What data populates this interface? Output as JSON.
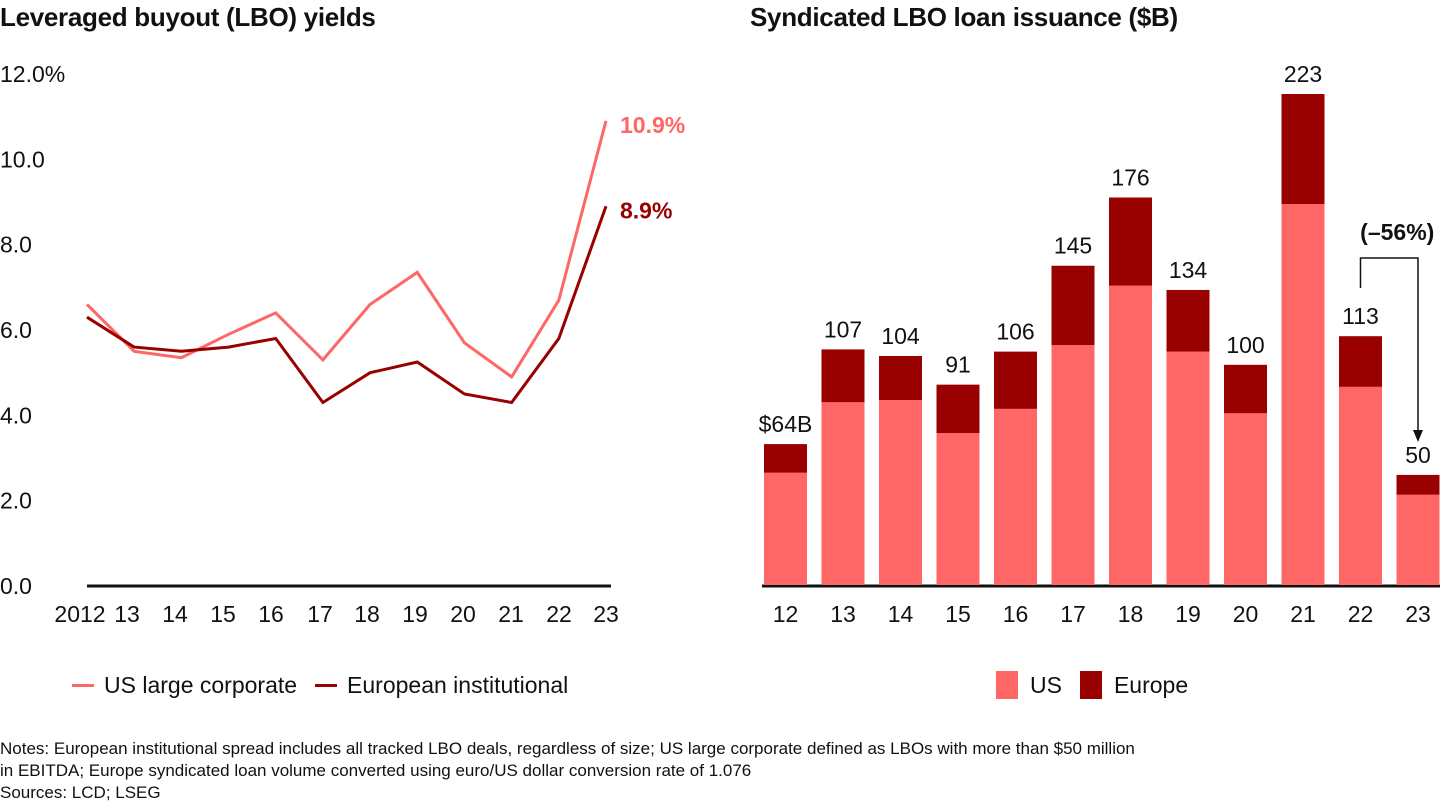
{
  "colors": {
    "us": "#ff6666",
    "europe": "#990000",
    "axis": "#111111"
  },
  "chart_data": [
    {
      "type": "line",
      "title": "Leveraged buyout (LBO) yields",
      "x": [
        "2012",
        "13",
        "14",
        "15",
        "16",
        "17",
        "18",
        "19",
        "20",
        "21",
        "22",
        "23"
      ],
      "yticks": [
        "0.0",
        "2.0",
        "4.0",
        "6.0",
        "8.0",
        "10.0",
        "12.0%"
      ],
      "ylim": [
        0,
        12
      ],
      "series": [
        {
          "name": "US large corporate",
          "color": "#ff6666",
          "values": [
            6.6,
            5.5,
            5.35,
            5.9,
            6.4,
            5.3,
            6.6,
            7.35,
            5.7,
            4.9,
            6.7,
            10.9
          ],
          "end_label": "10.9%"
        },
        {
          "name": "European institutional",
          "color": "#990000",
          "values": [
            6.3,
            5.6,
            5.5,
            5.6,
            5.8,
            4.3,
            5.0,
            5.25,
            4.5,
            4.3,
            5.8,
            8.9
          ],
          "end_label": "8.9%"
        }
      ],
      "legend": "bottom"
    },
    {
      "type": "bar",
      "stacked": true,
      "title": "Syndicated LBO loan issuance ($B)",
      "categories": [
        "12",
        "13",
        "14",
        "15",
        "16",
        "17",
        "18",
        "19",
        "20",
        "21",
        "22",
        "23"
      ],
      "totals": [
        64,
        107,
        104,
        91,
        106,
        145,
        176,
        134,
        100,
        223,
        113,
        50
      ],
      "total_labels": [
        "$64B",
        "107",
        "104",
        "91",
        "106",
        "145",
        "176",
        "134",
        "100",
        "223",
        "113",
        "50"
      ],
      "series": [
        {
          "name": "US",
          "color": "#ff6666",
          "values": [
            51,
            83,
            84,
            69,
            80,
            109,
            136,
            106,
            78,
            173,
            90,
            41
          ]
        },
        {
          "name": "Europe",
          "color": "#990000",
          "values": [
            13,
            24,
            20,
            22,
            26,
            36,
            40,
            28,
            22,
            50,
            23,
            9
          ]
        }
      ],
      "annotation": "(–56%)",
      "ylim": [
        0,
        223
      ],
      "legend": "bottom"
    }
  ],
  "notes": {
    "line1": "Notes: European institutional spread includes all tracked LBO deals, regardless of size; US large corporate defined as LBOs with more than $50 million",
    "line2": "in EBITDA; Europe syndicated loan volume converted using euro/US dollar conversion rate of 1.076",
    "sources": "Sources: LCD; LSEG"
  }
}
